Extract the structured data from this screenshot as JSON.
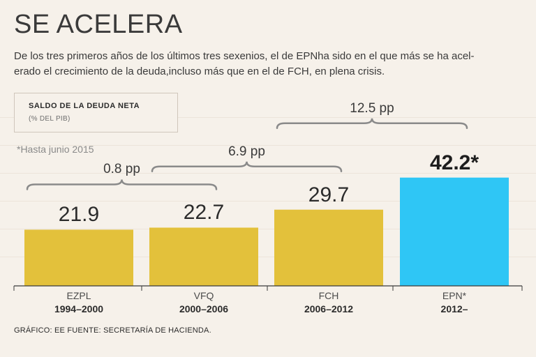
{
  "header": {
    "title": "SE ACELERA",
    "subtitle_line1": "De los tres primeros años de los últimos tres sexenios, el de EPNha sido en el que más se ha acel-",
    "subtitle_line2": "erado el crecimiento de la deuda,incluso más que en el de FCH, en plena crisis."
  },
  "legend": {
    "title": "SALDO DE LA DEUDA NETA",
    "unit": "(% DEL PIB)"
  },
  "note": "*Hasta junio 2015",
  "footer": "GRÁFICO: EE  FUENTE: SECRETARÍA DE HACIENDA.",
  "colors": {
    "bar_default": "#e3c13b",
    "bar_highlight": "#2fc6f5",
    "axis": "#3a3a3a",
    "brace": "#8a8a8a"
  },
  "chart_data": {
    "type": "bar",
    "title": "SE ACELERA",
    "ylabel": "",
    "xlabel": "",
    "ylim": [
      0,
      50
    ],
    "categories": [
      "EZPL",
      "VFQ",
      "FCH",
      "EPN*"
    ],
    "periods": [
      "1994-2000",
      "2000-2006",
      "2006-2012",
      "2012-"
    ],
    "values": [
      21.9,
      22.7,
      29.7,
      42.2
    ],
    "value_labels": [
      "21.9",
      "22.7",
      "29.7",
      "42.2*"
    ],
    "highlight_index": 3,
    "annotations": [
      {
        "label": "0.8 pp",
        "from": 0,
        "to": 1
      },
      {
        "label": "6.9 pp",
        "from": 1,
        "to": 2
      },
      {
        "label": "12.5 pp",
        "from": 2,
        "to": 3
      }
    ]
  }
}
